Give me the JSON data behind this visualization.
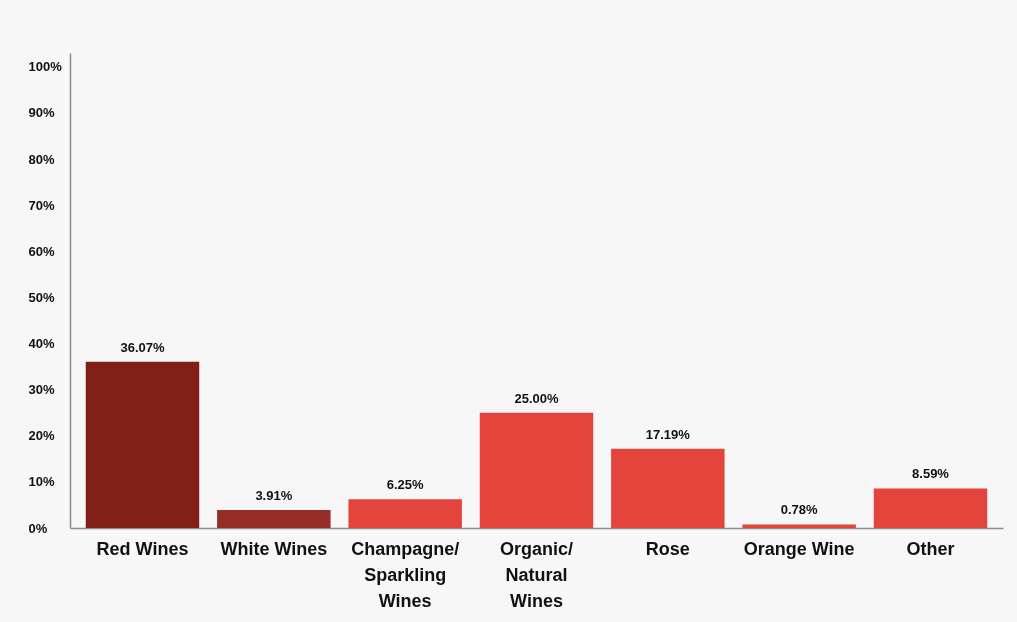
{
  "chart_data": {
    "type": "bar",
    "categories": [
      "Red Wines",
      "White Wines",
      "Champagne/ Sparkling Wines",
      "Organic/ Natural Wines",
      "Rose",
      "Orange Wine",
      "Other"
    ],
    "values": [
      36.07,
      3.91,
      6.25,
      25.0,
      17.19,
      0.78,
      8.59
    ],
    "colors": [
      "#801e18",
      "#952c27",
      "#e4443b",
      "#e4443b",
      "#e4443b",
      "#e4443b",
      "#e4443b"
    ],
    "value_labels": [
      "36.07%",
      "3.91%",
      "6.25%",
      "25.00%",
      "17.19%",
      "0.78%",
      "8.59%"
    ],
    "ylim": [
      0,
      103
    ],
    "yticks": [
      {
        "value": 0,
        "label": "0%"
      },
      {
        "value": 10,
        "label": "10%"
      },
      {
        "value": 20,
        "label": "20%"
      },
      {
        "value": 30,
        "label": "30%"
      },
      {
        "value": 40,
        "label": "40%"
      },
      {
        "value": 50,
        "label": "50%"
      },
      {
        "value": 60,
        "label": "60%"
      },
      {
        "value": 70,
        "label": "70%"
      },
      {
        "value": 80,
        "label": "80%"
      },
      {
        "value": 90,
        "label": "90%"
      },
      {
        "value": 100,
        "label": "100%"
      }
    ]
  }
}
